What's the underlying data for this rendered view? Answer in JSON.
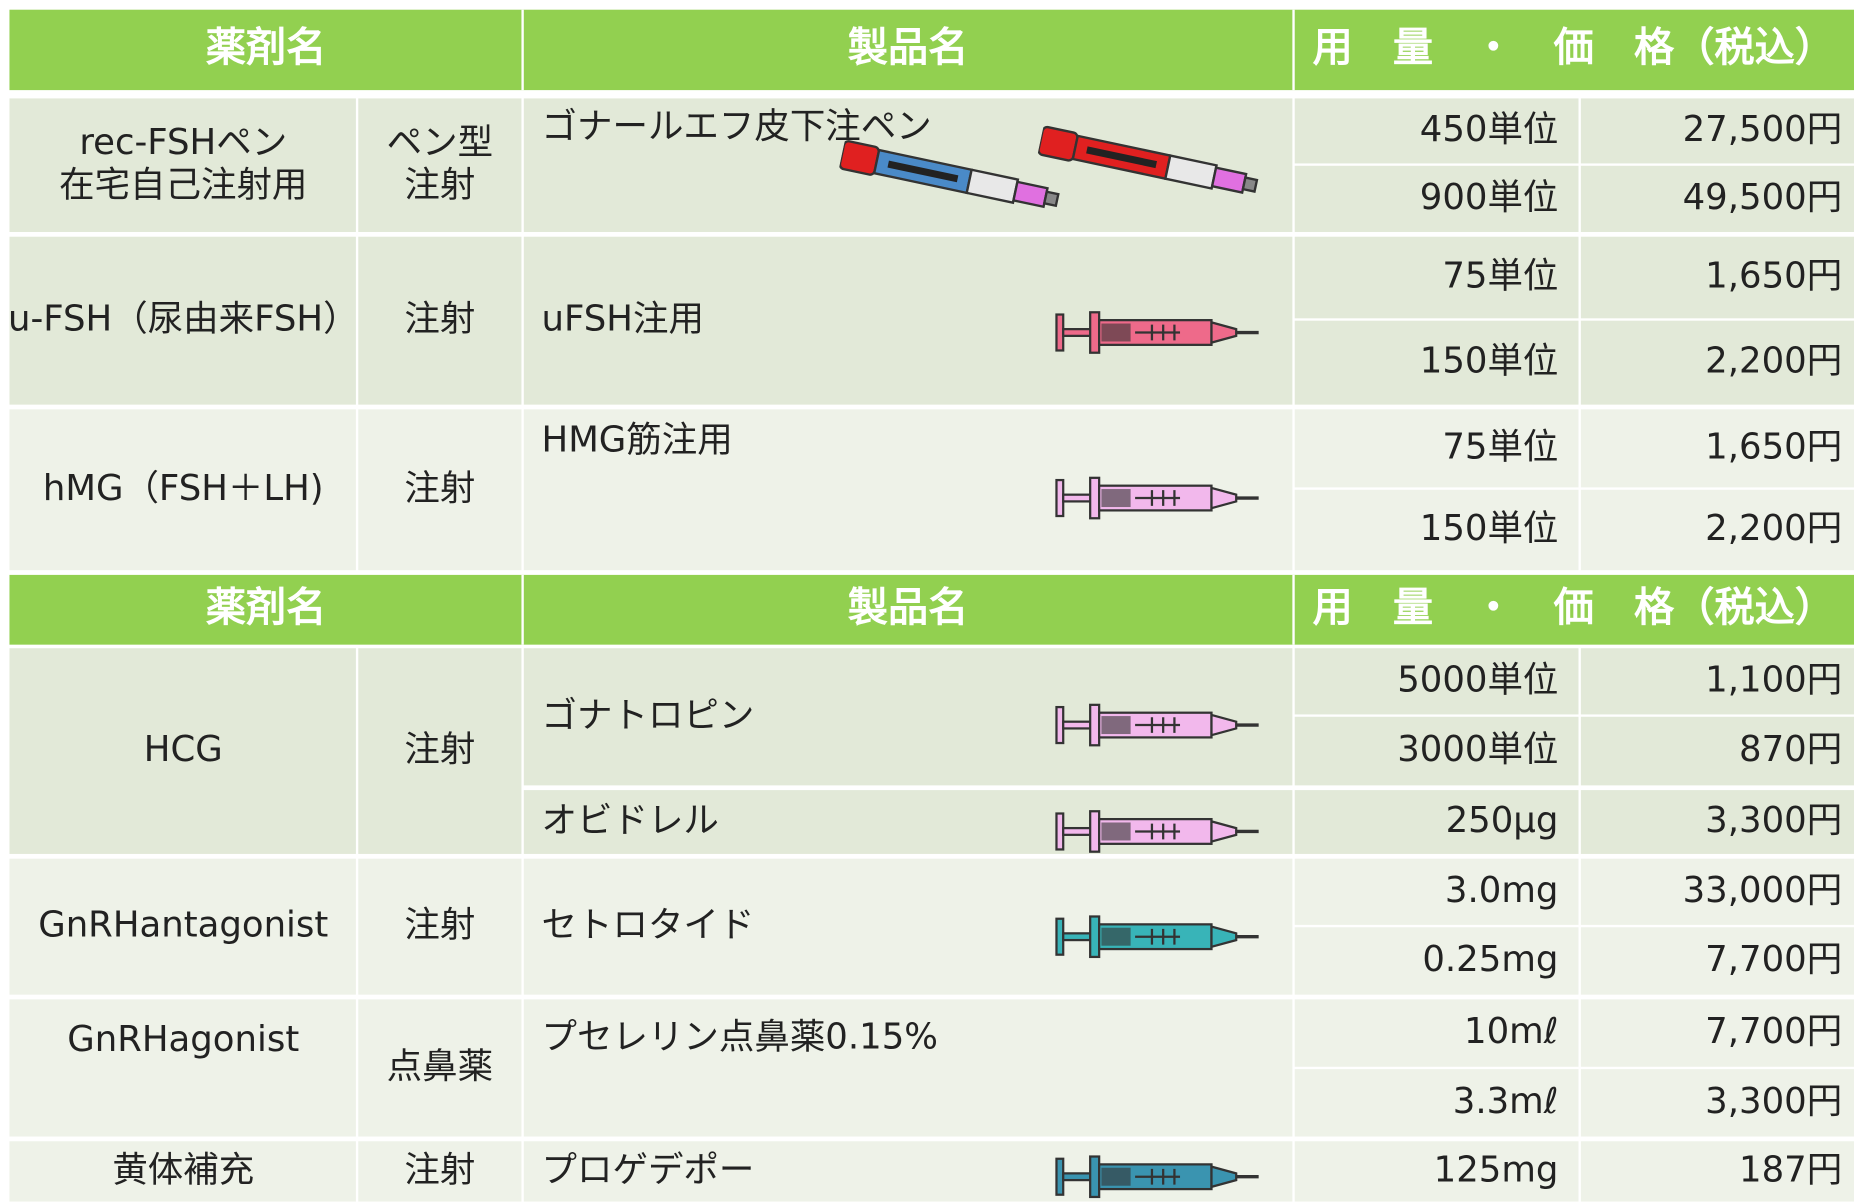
{
  "tables": [
    {
      "header": [
        "薬剤名",
        "製品名",
        "用　量　・　価　格（税込）"
      ],
      "rows": [
        {
          "drug": [
            "rec-FSHペン",
            "在宅自己注射用"
          ],
          "type": [
            "ペン型",
            "注射"
          ],
          "products": [
            {
              "name": "ゴナールエフ皮下注ペン",
              "doses": [
                {
                  "dose": "450単位",
                  "price": "27,500円"
                },
                {
                  "dose": "900単位",
                  "price": "49,500円"
                }
              ]
            }
          ]
        },
        {
          "drug": [
            "u-FSH（尿由来FSH）"
          ],
          "type": [
            "注射"
          ],
          "products": [
            {
              "name": "uFSH注用",
              "doses": [
                {
                  "dose": "75単位",
                  "price": "1,650円"
                },
                {
                  "dose": "150単位",
                  "price": "2,200円"
                }
              ]
            }
          ]
        },
        {
          "drug": [
            "hMG（FSH＋LH)"
          ],
          "type": [
            "注射"
          ],
          "products": [
            {
              "name": "HMG筋注用",
              "doses": [
                {
                  "dose": "75単位",
                  "price": "1,650円"
                },
                {
                  "dose": "150単位",
                  "price": "2,200円"
                }
              ]
            }
          ]
        }
      ]
    },
    {
      "header": [
        "薬剤名",
        "製品名",
        "用　量　・　価　格（税込）"
      ],
      "rows": [
        {
          "drug": [
            "HCG"
          ],
          "type": [
            "注射"
          ],
          "products": [
            {
              "name": "ゴナトロピン",
              "doses": [
                {
                  "dose": "5000単位",
                  "price": "1,100円"
                },
                {
                  "dose": "3000単位",
                  "price": "870円"
                }
              ]
            },
            {
              "name": "オビドレル",
              "doses": [
                {
                  "dose": "250μg",
                  "price": "3,300円"
                }
              ]
            }
          ]
        },
        {
          "drug": [
            "GnRHantagonist"
          ],
          "type": [
            "注射"
          ],
          "products": [
            {
              "name": "セトロタイド",
              "doses": [
                {
                  "dose": "3.0mg",
                  "price": "33,000円"
                },
                {
                  "dose": "0.25mg",
                  "price": "7,700円"
                }
              ]
            }
          ]
        },
        {
          "drug": [
            "GnRHagonist"
          ],
          "type": [
            "点鼻薬"
          ],
          "products": [
            {
              "name": "プセレリン点鼻薬0.15%",
              "doses": [
                {
                  "dose": "10mℓ",
                  "price": "7,700円"
                },
                {
                  "dose": "3.3mℓ",
                  "price": "3,300円"
                }
              ]
            }
          ]
        },
        {
          "drug": [
            "黄体補充"
          ],
          "type": [
            "注射"
          ],
          "products": [
            {
              "name": "プロゲデポー",
              "doses": [
                {
                  "dose": "125mg",
                  "price": "187円"
                }
              ]
            }
          ]
        }
      ]
    }
  ]
}
